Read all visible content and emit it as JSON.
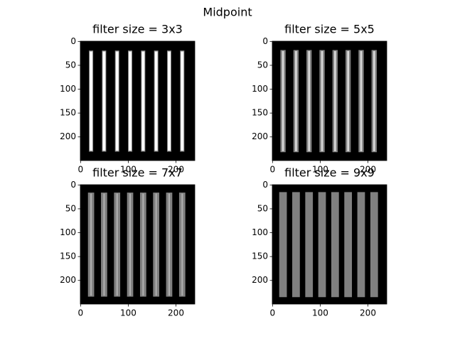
{
  "figure_title": "Midpoint",
  "chart_data": [
    {
      "type": "image",
      "title": "filter size = 3x3",
      "xlim": [
        -0.5,
        239.5
      ],
      "ylim": [
        249.5,
        -0.5
      ],
      "xticks": [
        0,
        100,
        200
      ],
      "yticks": [
        0,
        50,
        100,
        150,
        200
      ]
    },
    {
      "type": "image",
      "title": "filter size = 5x5",
      "xlim": [
        -0.5,
        239.5
      ],
      "ylim": [
        249.5,
        -0.5
      ],
      "xticks": [
        0,
        100,
        200
      ],
      "yticks": [
        0,
        50,
        100,
        150,
        200
      ]
    },
    {
      "type": "image",
      "title": "filter size = 7x7",
      "xlim": [
        -0.5,
        239.5
      ],
      "ylim": [
        249.5,
        -0.5
      ],
      "xticks": [
        0,
        100,
        200
      ],
      "yticks": [
        0,
        50,
        100,
        150,
        200
      ]
    },
    {
      "type": "image",
      "title": "filter size = 9x9",
      "xlim": [
        -0.5,
        239.5
      ],
      "ylim": [
        249.5,
        -0.5
      ],
      "xticks": [
        0,
        100,
        200
      ],
      "yticks": [
        0,
        50,
        100,
        150,
        200
      ]
    }
  ]
}
